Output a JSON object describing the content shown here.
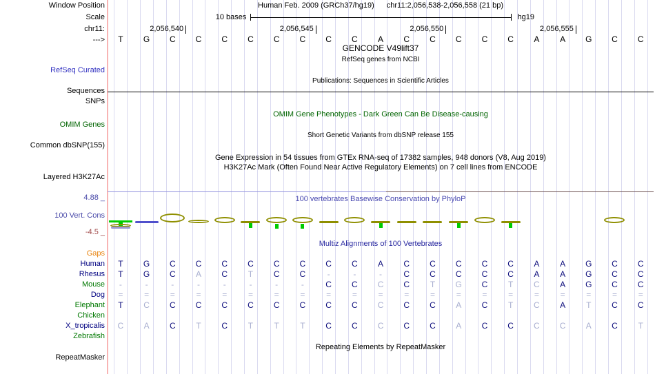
{
  "window": {
    "left_label": "Window Position",
    "assembly": "Human Feb. 2009 (GRCh37/hg19)",
    "position": "chr11:2,056,538-2,056,558 (21 bp)"
  },
  "scale": {
    "left_label": "Scale",
    "bar_label": "10 bases",
    "genome": "hg19"
  },
  "chrom": {
    "left_label": "chr11:",
    "ticks": [
      {
        "label": "2,056,540",
        "base_end": 3
      },
      {
        "label": "2,056,545",
        "base_end": 8
      },
      {
        "label": "2,056,550",
        "base_end": 13
      },
      {
        "label": "2,056,555",
        "base_end": 18
      }
    ]
  },
  "strand": {
    "left_label": "--->"
  },
  "sequence": {
    "bases": [
      "T",
      "G",
      "C",
      "C",
      "C",
      "C",
      "C",
      "C",
      "C",
      "C",
      "A",
      "C",
      "C",
      "C",
      "C",
      "C",
      "A",
      "A",
      "G",
      "C",
      "C"
    ]
  },
  "gene_tracks": {
    "gencode_title": "GENCODE V49lift37",
    "refseq_ncbi_subtitle": "RefSeq genes from NCBI",
    "refseq_curated_label": "RefSeq Curated",
    "publications_title": "Publications: Sequences in Scientific Articles",
    "sequences_label": "Sequences",
    "snps_label": "SNPs",
    "omim_title": "OMIM Gene Phenotypes - Dark Green Can Be Disease-causing",
    "omim_label": "OMIM Genes",
    "dbsnp_title": "Short Genetic Variants from dbSNP release 155",
    "dbsnp_label": "Common dbSNP(155)",
    "gtex_title": "Gene Expression in 54 tissues from GTEx RNA-seq of 17382 samples, 948 donors (V8, Aug 2019)",
    "h3k27ac_title": "H3K27Ac Mark (Often Found Near Active Regulatory Elements) on 7 cell lines from ENCODE",
    "h3k27ac_label": "Layered H3K27Ac"
  },
  "conservation": {
    "title": "100 vertebrates Basewise Conservation by PhyloP",
    "label": "100 Vert. Cons",
    "max_label": "4.88 _",
    "min_label": "-4.5 _",
    "glyphs": [
      "green-special",
      "blue-dash",
      "ellipse-lg",
      "lens",
      "ellipse",
      "dash-green",
      "ellipse-green",
      "ellipse-green",
      "dash",
      "ellipse",
      "dash-green",
      "dash",
      "dash",
      "dash-green",
      "ellipse",
      "dash-green",
      "none",
      "none",
      "none",
      "ellipse",
      "none"
    ]
  },
  "alignment": {
    "title": "Multiz Alignments of 100 Vertebrates",
    "rows": [
      {
        "name": "Gaps",
        "label_color": "orange",
        "seq": "",
        "pale": ""
      },
      {
        "name": "Human",
        "label_color": "navy",
        "seq": "TGCCCCCCCCACCCCCAAGCC",
        "pale": "000000000000000000000"
      },
      {
        "name": "Rhesus",
        "label_color": "navy",
        "seq": "TGCACTCC---CCCCCAAGCC",
        "pale": "000101001110000000000"
      },
      {
        "name": "Mouse",
        "label_color": "lgreen",
        "seq": "--------CCCCTGCTCAGCC",
        "pale": "111111110010110110000"
      },
      {
        "name": "Dog",
        "label_color": "navy",
        "seq": "=====================",
        "pale": "111111111111111111111"
      },
      {
        "name": "Elephant",
        "label_color": "lgreen",
        "seq": "TCCCCCCCCCCCCACTCATCC",
        "pale": "010000000010010110100"
      },
      {
        "name": "Chicken",
        "label_color": "lgreen",
        "seq": "",
        "pale": ""
      },
      {
        "name": "X_tropicalis",
        "label_color": "navy",
        "seq": "CACTCTTTCCCCCACCCCACT",
        "pale": "110101110010010011101"
      },
      {
        "name": "Zebrafish",
        "label_color": "lgreen",
        "seq": "",
        "pale": ""
      }
    ]
  },
  "repeats": {
    "title": "Repeating Elements by RepeatMasker",
    "label": "RepeatMasker"
  },
  "colors": {
    "grid": "#dadaf0",
    "label_gutter_line": "#f8b4b4",
    "dark_base": "#10107e",
    "pale_base": "#a8aed0",
    "refseq_blue": "#3030c0",
    "omim_green": "#006400",
    "cons_blue": "#4848a8",
    "min_maroon": "#a04848",
    "gaps_orange": "#e8820c",
    "species_navy": "#000080",
    "species_green": "#007800",
    "glyph_olive": "#8f8f00",
    "glyph_green": "#00cc00",
    "glyph_blue": "#5050cc",
    "cons_topline_left": "#9090dd",
    "cons_topline_right": "#6b4f4f"
  }
}
